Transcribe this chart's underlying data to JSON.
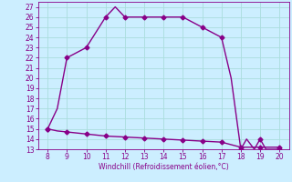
{
  "xlabel": "Windchill (Refroidissement éolien,°C)",
  "x_data": [
    8,
    8,
    8.5,
    9,
    10,
    11,
    11.5,
    12,
    13,
    14,
    15,
    16,
    17,
    17.5,
    18,
    18.3,
    18.7,
    19,
    19.3,
    19.7,
    20
  ],
  "y_data": [
    15,
    15,
    17,
    22,
    23,
    26,
    27,
    26,
    26,
    26,
    26,
    25,
    24,
    20,
    13,
    14,
    13,
    14,
    13,
    13,
    13
  ],
  "x_data2": [
    8,
    8.5,
    9,
    10,
    11,
    12,
    13,
    14,
    15,
    16,
    17,
    18,
    19,
    20
  ],
  "y_data2": [
    15,
    14.8,
    14.7,
    14.5,
    14.3,
    14.2,
    14.1,
    14.0,
    13.9,
    13.8,
    13.7,
    13.2,
    13.2,
    13.2
  ],
  "marker_x1": [
    8,
    9,
    10,
    11,
    12,
    13,
    14,
    15,
    16,
    17,
    18,
    19,
    20
  ],
  "marker_y1": [
    15,
    22,
    23,
    26,
    26,
    26,
    26,
    26,
    25,
    24,
    13,
    14,
    13
  ],
  "marker_x2": [
    8,
    9,
    10,
    11,
    12,
    13,
    14,
    15,
    16,
    17,
    18,
    19,
    20
  ],
  "marker_y2": [
    15,
    14.7,
    14.5,
    14.3,
    14.2,
    14.1,
    14.0,
    13.9,
    13.8,
    13.7,
    13.2,
    13.2,
    13.2
  ],
  "line_color": "#880088",
  "bg_color": "#cceeff",
  "grid_color": "#aadddd",
  "xlim": [
    7.5,
    20.5
  ],
  "ylim": [
    13,
    27.5
  ],
  "xticks": [
    8,
    9,
    10,
    11,
    12,
    13,
    14,
    15,
    16,
    17,
    18,
    19,
    20
  ],
  "yticks": [
    13,
    14,
    15,
    16,
    17,
    18,
    19,
    20,
    21,
    22,
    23,
    24,
    25,
    26,
    27
  ],
  "marker_size": 2.5,
  "linewidth": 1.0
}
